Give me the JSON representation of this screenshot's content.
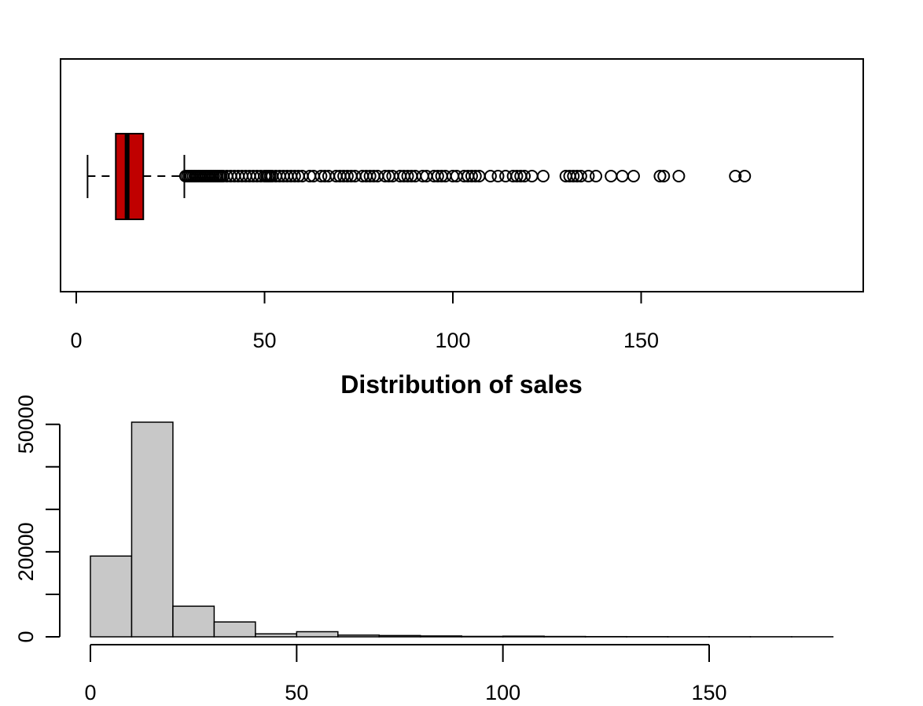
{
  "chart_data": [
    {
      "type": "boxplot",
      "orientation": "horizontal",
      "box_color": "#c00000",
      "xlim": [
        0,
        180
      ],
      "x_ticks": [
        0,
        50,
        100,
        150
      ],
      "x_tick_labels": [
        "0",
        "50",
        "100",
        "150"
      ],
      "whisker_low": 3,
      "q1": 10.5,
      "median": 13.5,
      "q3": 17.8,
      "whisker_high": 28.7,
      "outliers": [
        29,
        29.5,
        30,
        30.5,
        31,
        31.5,
        32,
        32.5,
        33,
        33.5,
        34,
        34.5,
        35,
        35.5,
        36,
        36.5,
        37,
        37.5,
        38,
        38.5,
        39,
        40,
        41,
        42,
        43,
        44,
        45,
        46,
        47,
        48,
        49,
        50,
        50.5,
        51,
        51.5,
        52,
        53,
        54,
        55,
        56,
        57,
        58,
        59,
        60,
        62,
        63,
        65,
        66,
        67,
        69,
        70,
        71,
        72,
        73,
        74,
        76,
        77,
        78,
        79,
        80,
        82,
        83,
        84,
        86,
        87,
        88,
        89,
        90,
        92,
        93,
        95,
        96,
        97,
        98,
        100,
        101,
        103,
        104,
        105,
        106,
        107,
        110,
        112,
        114,
        116,
        117,
        118,
        119,
        121,
        124,
        130,
        131,
        132,
        133,
        134,
        136,
        138,
        142,
        145,
        148,
        155,
        156,
        160,
        175,
        177.5
      ]
    },
    {
      "type": "histogram",
      "title": "Distribution of sales",
      "bar_color": "#c8c8c8",
      "bin_edges": [
        0,
        10,
        20,
        30,
        40,
        50,
        60,
        70,
        80,
        90,
        100,
        110,
        120,
        130,
        140,
        150,
        160,
        170,
        180
      ],
      "counts": [
        19000,
        50500,
        7200,
        3500,
        700,
        1200,
        400,
        300,
        200,
        100,
        150,
        80,
        50,
        40,
        30,
        25,
        20,
        15
      ],
      "ylim": [
        0,
        50500
      ],
      "y_ticks": [
        0,
        20000,
        50000
      ],
      "y_tick_labels": [
        "0",
        "20000",
        "50000"
      ],
      "x_ticks": [
        0,
        50,
        100,
        150
      ],
      "x_tick_labels": [
        "0",
        "50",
        "100",
        "150"
      ]
    }
  ]
}
